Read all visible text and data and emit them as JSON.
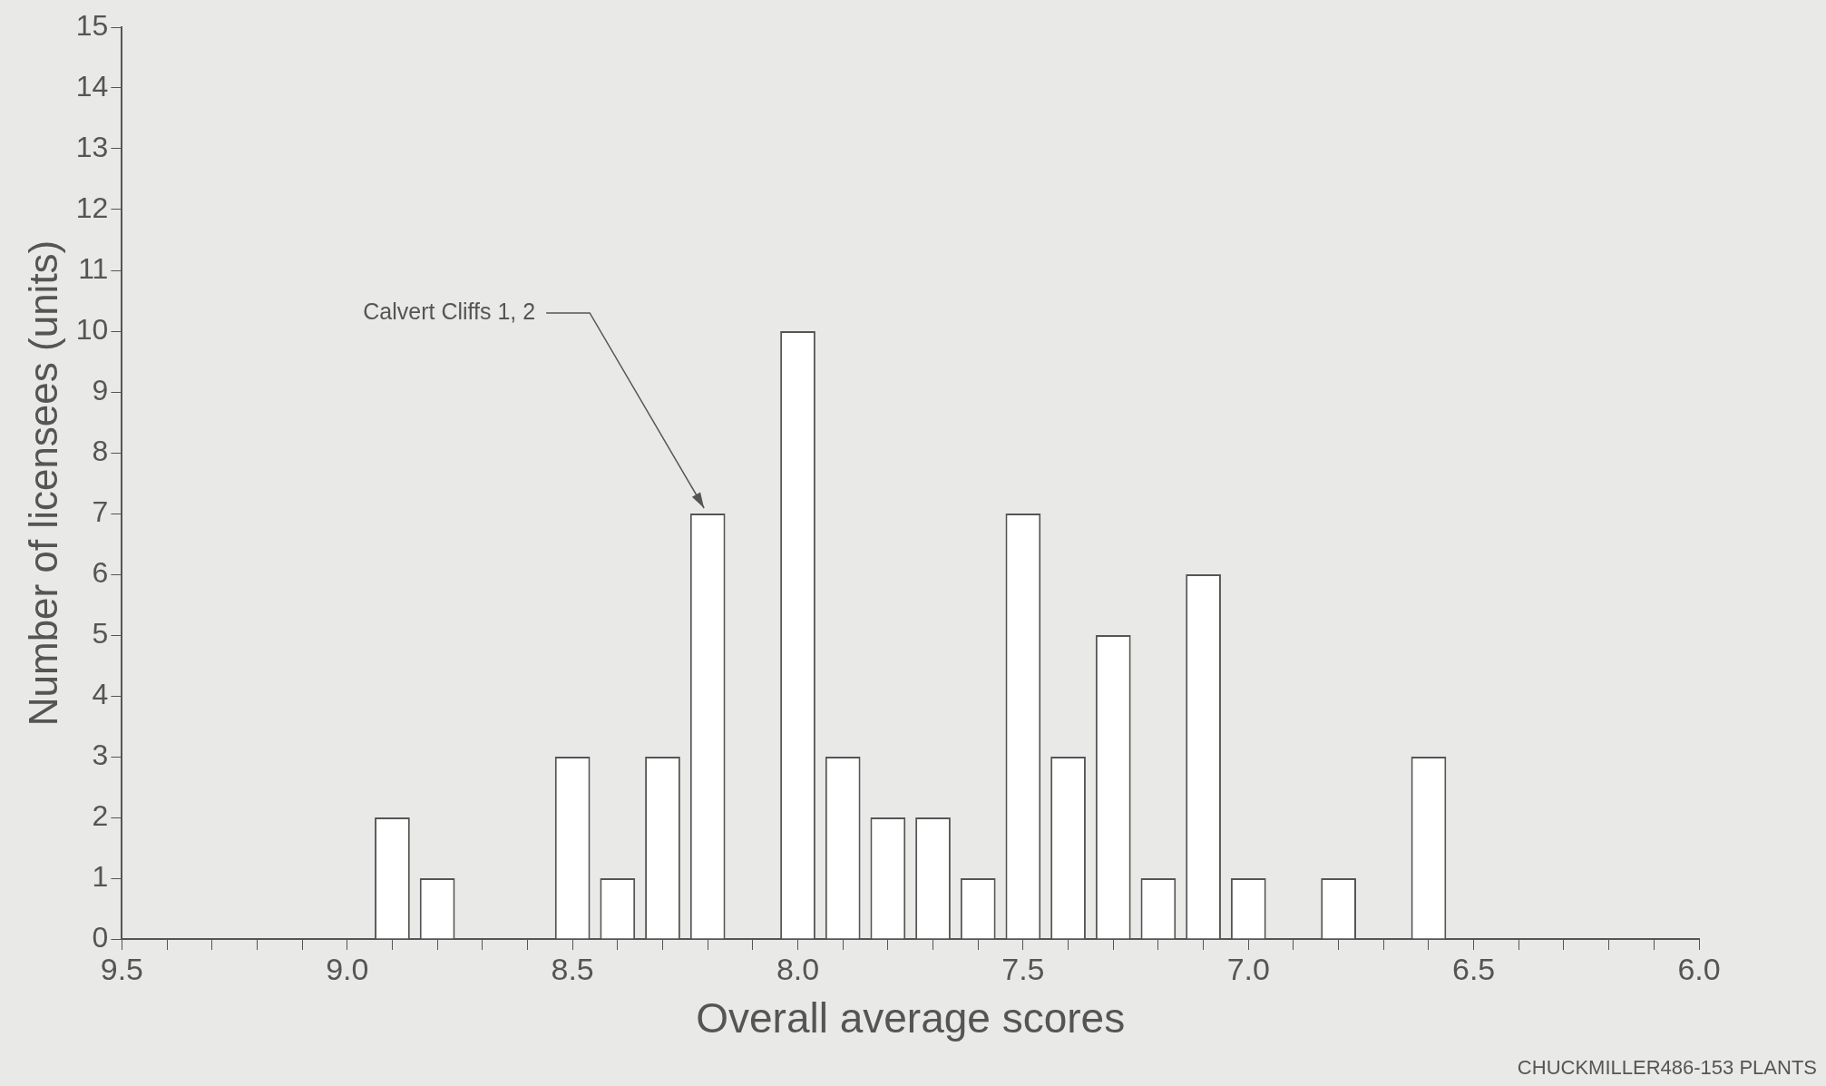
{
  "chart_data": {
    "type": "bar",
    "xlabel": "Overall average scores",
    "ylabel": "Number of licensees (units)",
    "x": [
      8.9,
      8.8,
      8.5,
      8.4,
      8.3,
      8.2,
      8.0,
      7.9,
      7.8,
      7.7,
      7.6,
      7.5,
      7.4,
      7.3,
      7.2,
      7.1,
      7.0,
      6.8,
      6.6
    ],
    "values": [
      2,
      1,
      3,
      1,
      3,
      7,
      10,
      3,
      2,
      2,
      1,
      7,
      3,
      5,
      1,
      6,
      1,
      1,
      3
    ],
    "color": "#ffffff",
    "xlim": [
      9.5,
      6.0
    ],
    "xticks": [
      {
        "value": 9.5,
        "label": "9.5"
      },
      {
        "value": 9.4,
        "label": null
      },
      {
        "value": 9.3,
        "label": null
      },
      {
        "value": 9.2,
        "label": null
      },
      {
        "value": 9.1,
        "label": null
      },
      {
        "value": 9.0,
        "label": "9.0"
      },
      {
        "value": 8.9,
        "label": null
      },
      {
        "value": 8.8,
        "label": null
      },
      {
        "value": 8.7,
        "label": null
      },
      {
        "value": 8.6,
        "label": null
      },
      {
        "value": 8.5,
        "label": "8.5"
      },
      {
        "value": 8.4,
        "label": null
      },
      {
        "value": 8.3,
        "label": null
      },
      {
        "value": 8.2,
        "label": null
      },
      {
        "value": 8.1,
        "label": null
      },
      {
        "value": 8.0,
        "label": "8.0"
      },
      {
        "value": 7.9,
        "label": null
      },
      {
        "value": 7.8,
        "label": null
      },
      {
        "value": 7.7,
        "label": null
      },
      {
        "value": 7.6,
        "label": null
      },
      {
        "value": 7.5,
        "label": "7.5"
      },
      {
        "value": 7.4,
        "label": null
      },
      {
        "value": 7.3,
        "label": null
      },
      {
        "value": 7.2,
        "label": null
      },
      {
        "value": 7.1,
        "label": null
      },
      {
        "value": 7.0,
        "label": "7.0"
      },
      {
        "value": 6.9,
        "label": null
      },
      {
        "value": 6.8,
        "label": null
      },
      {
        "value": 6.7,
        "label": null
      },
      {
        "value": 6.6,
        "label": null
      },
      {
        "value": 6.5,
        "label": "6.5"
      },
      {
        "value": 6.4,
        "label": null
      },
      {
        "value": 6.3,
        "label": null
      },
      {
        "value": 6.2,
        "label": null
      },
      {
        "value": 6.1,
        "label": null
      },
      {
        "value": 6.0,
        "label": "6.0"
      }
    ],
    "ylim": [
      0,
      15
    ],
    "yticks": [
      0,
      1,
      2,
      3,
      4,
      5,
      6,
      7,
      8,
      9,
      10,
      11,
      12,
      13,
      14,
      15
    ],
    "grid": false,
    "legend": false,
    "annotations": [
      {
        "text": "Calvert Cliffs 1, 2",
        "x": 8.2,
        "y": 7
      },
      "CHUCKMILLER486-153 PLANTS"
    ]
  }
}
